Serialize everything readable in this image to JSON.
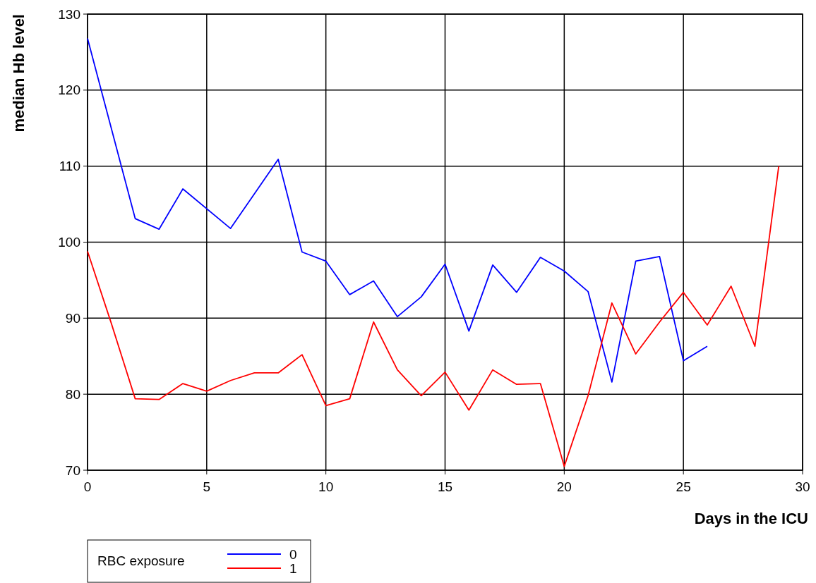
{
  "chart_data": {
    "type": "line",
    "xlabel": "Days in the ICU",
    "ylabel": "median Hb level",
    "legend_title": "RBC exposure",
    "xlim": [
      0,
      30
    ],
    "ylim": [
      70,
      130
    ],
    "xticks": [
      0,
      5,
      10,
      15,
      20,
      25,
      30
    ],
    "yticks": [
      70,
      80,
      90,
      100,
      110,
      120,
      130
    ],
    "grid": true,
    "legend": "bottom left",
    "line_style": "solid",
    "marker": "none",
    "series": [
      {
        "name": "0",
        "color": "#0000ff",
        "x": [
          0,
          2,
          3,
          4,
          6,
          8,
          9,
          10,
          11,
          12,
          13,
          14,
          15,
          16,
          17,
          18,
          19,
          20,
          21,
          22,
          23,
          24,
          25,
          26
        ],
        "values": [
          126.8,
          103.1,
          101.7,
          107,
          101.8,
          110.9,
          98.7,
          97.5,
          93.1,
          94.9,
          90.2,
          92.8,
          97.1,
          88.3,
          97,
          93.4,
          98,
          96.2,
          93.5,
          81.6,
          97.5,
          98.1,
          84.4,
          86.3
        ]
      },
      {
        "name": "1",
        "color": "#ff0000",
        "x": [
          0,
          1,
          2,
          3,
          4,
          5,
          6,
          7,
          8,
          9,
          10,
          11,
          12,
          13,
          14,
          15,
          16,
          17,
          18,
          19,
          20,
          21,
          22,
          23,
          24,
          25,
          26,
          27,
          28,
          29
        ],
        "values": [
          98.8,
          89.3,
          79.4,
          79.3,
          81.4,
          80.4,
          81.8,
          82.8,
          82.8,
          85.2,
          78.5,
          79.4,
          89.5,
          83.2,
          79.8,
          82.9,
          77.9,
          83.2,
          81.3,
          81.4,
          70.5,
          79.8,
          92,
          85.3,
          89.5,
          93.4,
          89.1,
          94.2,
          86.3,
          110
        ]
      }
    ]
  }
}
